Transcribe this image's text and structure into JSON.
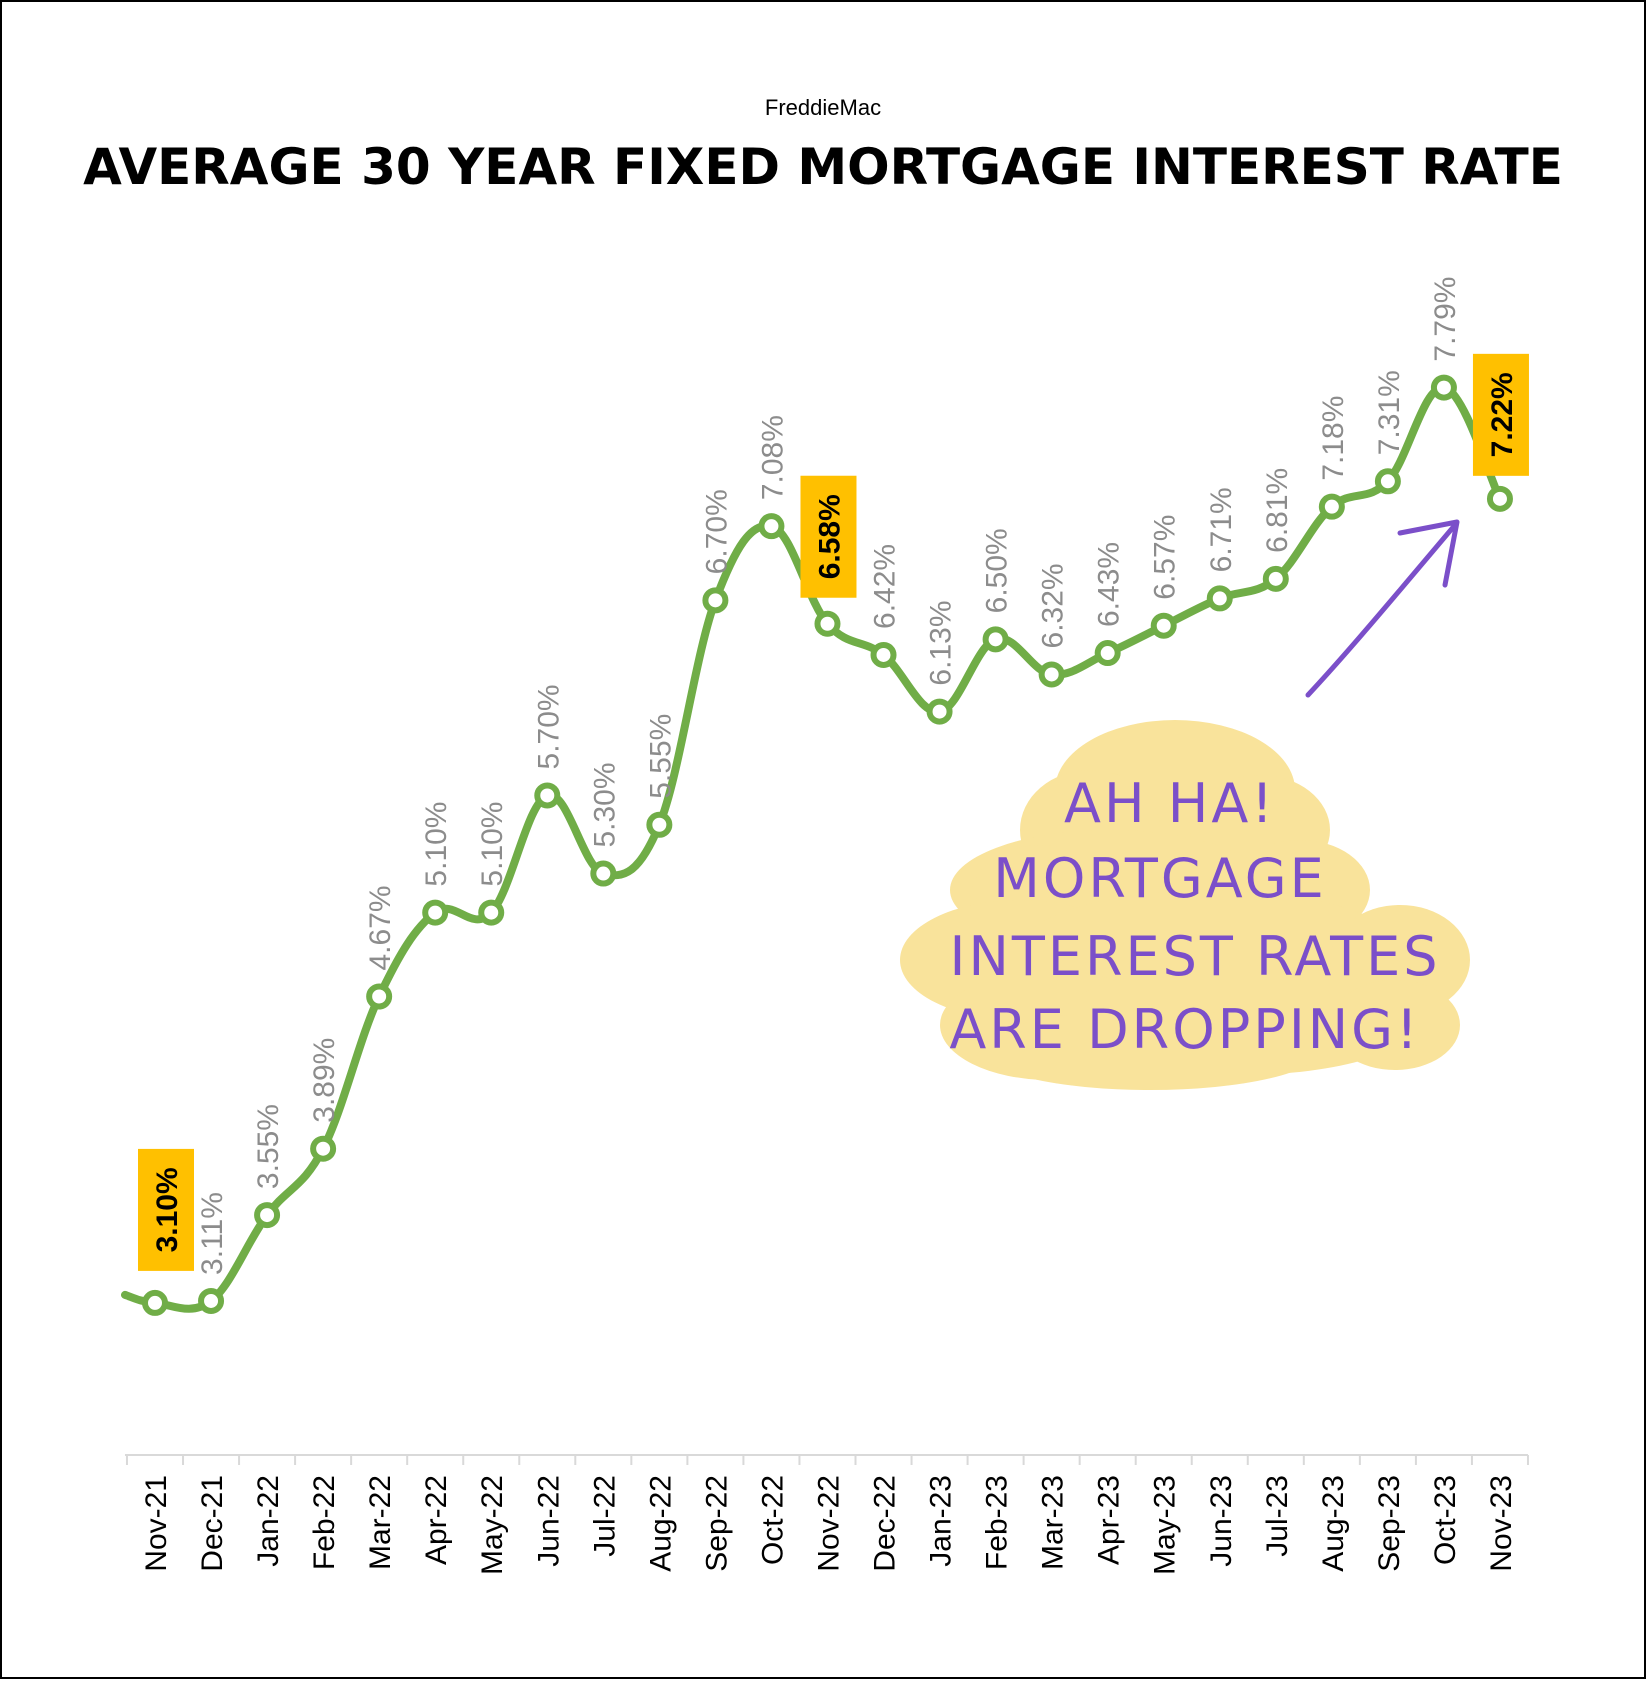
{
  "chart_data": {
    "type": "line",
    "subtitle": "FreddieMac",
    "title": "AVERAGE 30 YEAR FIXED MORTGAGE INTEREST RATE",
    "categories": [
      "Nov-21",
      "Dec-21",
      "Jan-22",
      "Feb-22",
      "Mar-22",
      "Apr-22",
      "May-22",
      "Jun-22",
      "Jul-22",
      "Aug-22",
      "Sep-22",
      "Oct-22",
      "Nov-22",
      "Dec-22",
      "Jan-23",
      "Feb-23",
      "Mar-23",
      "Apr-23",
      "May-23",
      "Jun-23",
      "Jul-23",
      "Aug-23",
      "Sep-23",
      "Oct-23",
      "Nov-23"
    ],
    "values": [
      3.1,
      3.11,
      3.55,
      3.89,
      4.67,
      5.1,
      5.1,
      5.7,
      5.3,
      5.55,
      6.7,
      7.08,
      6.58,
      6.42,
      6.13,
      6.5,
      6.32,
      6.43,
      6.57,
      6.71,
      6.81,
      7.18,
      7.31,
      7.79,
      7.22
    ],
    "labels": [
      "3.10%",
      "3.11%",
      "3.55%",
      "3.89%",
      "4.67%",
      "5.10%",
      "5.10%",
      "5.70%",
      "5.30%",
      "5.55%",
      "6.70%",
      "7.08%",
      "6.58%",
      "6.42%",
      "6.13%",
      "6.50%",
      "6.32%",
      "6.43%",
      "6.57%",
      "6.71%",
      "6.81%",
      "7.18%",
      "7.31%",
      "7.79%",
      "7.22%"
    ],
    "highlighted": [
      "Nov-21",
      "Nov-22",
      "Nov-23"
    ],
    "ylim": [
      2.5,
      8.7
    ],
    "grid": false,
    "legend": "none",
    "colors": {
      "line": "#70ad47",
      "highlight": "#ffc000",
      "annotation": "#7b4fc9",
      "cloud": "#f9e39b",
      "label": "#8c8c8c"
    },
    "annotation": {
      "lines": [
        "AH HA!",
        "MORTGAGE",
        "INTEREST RATES",
        "ARE DROPPING!"
      ]
    }
  }
}
